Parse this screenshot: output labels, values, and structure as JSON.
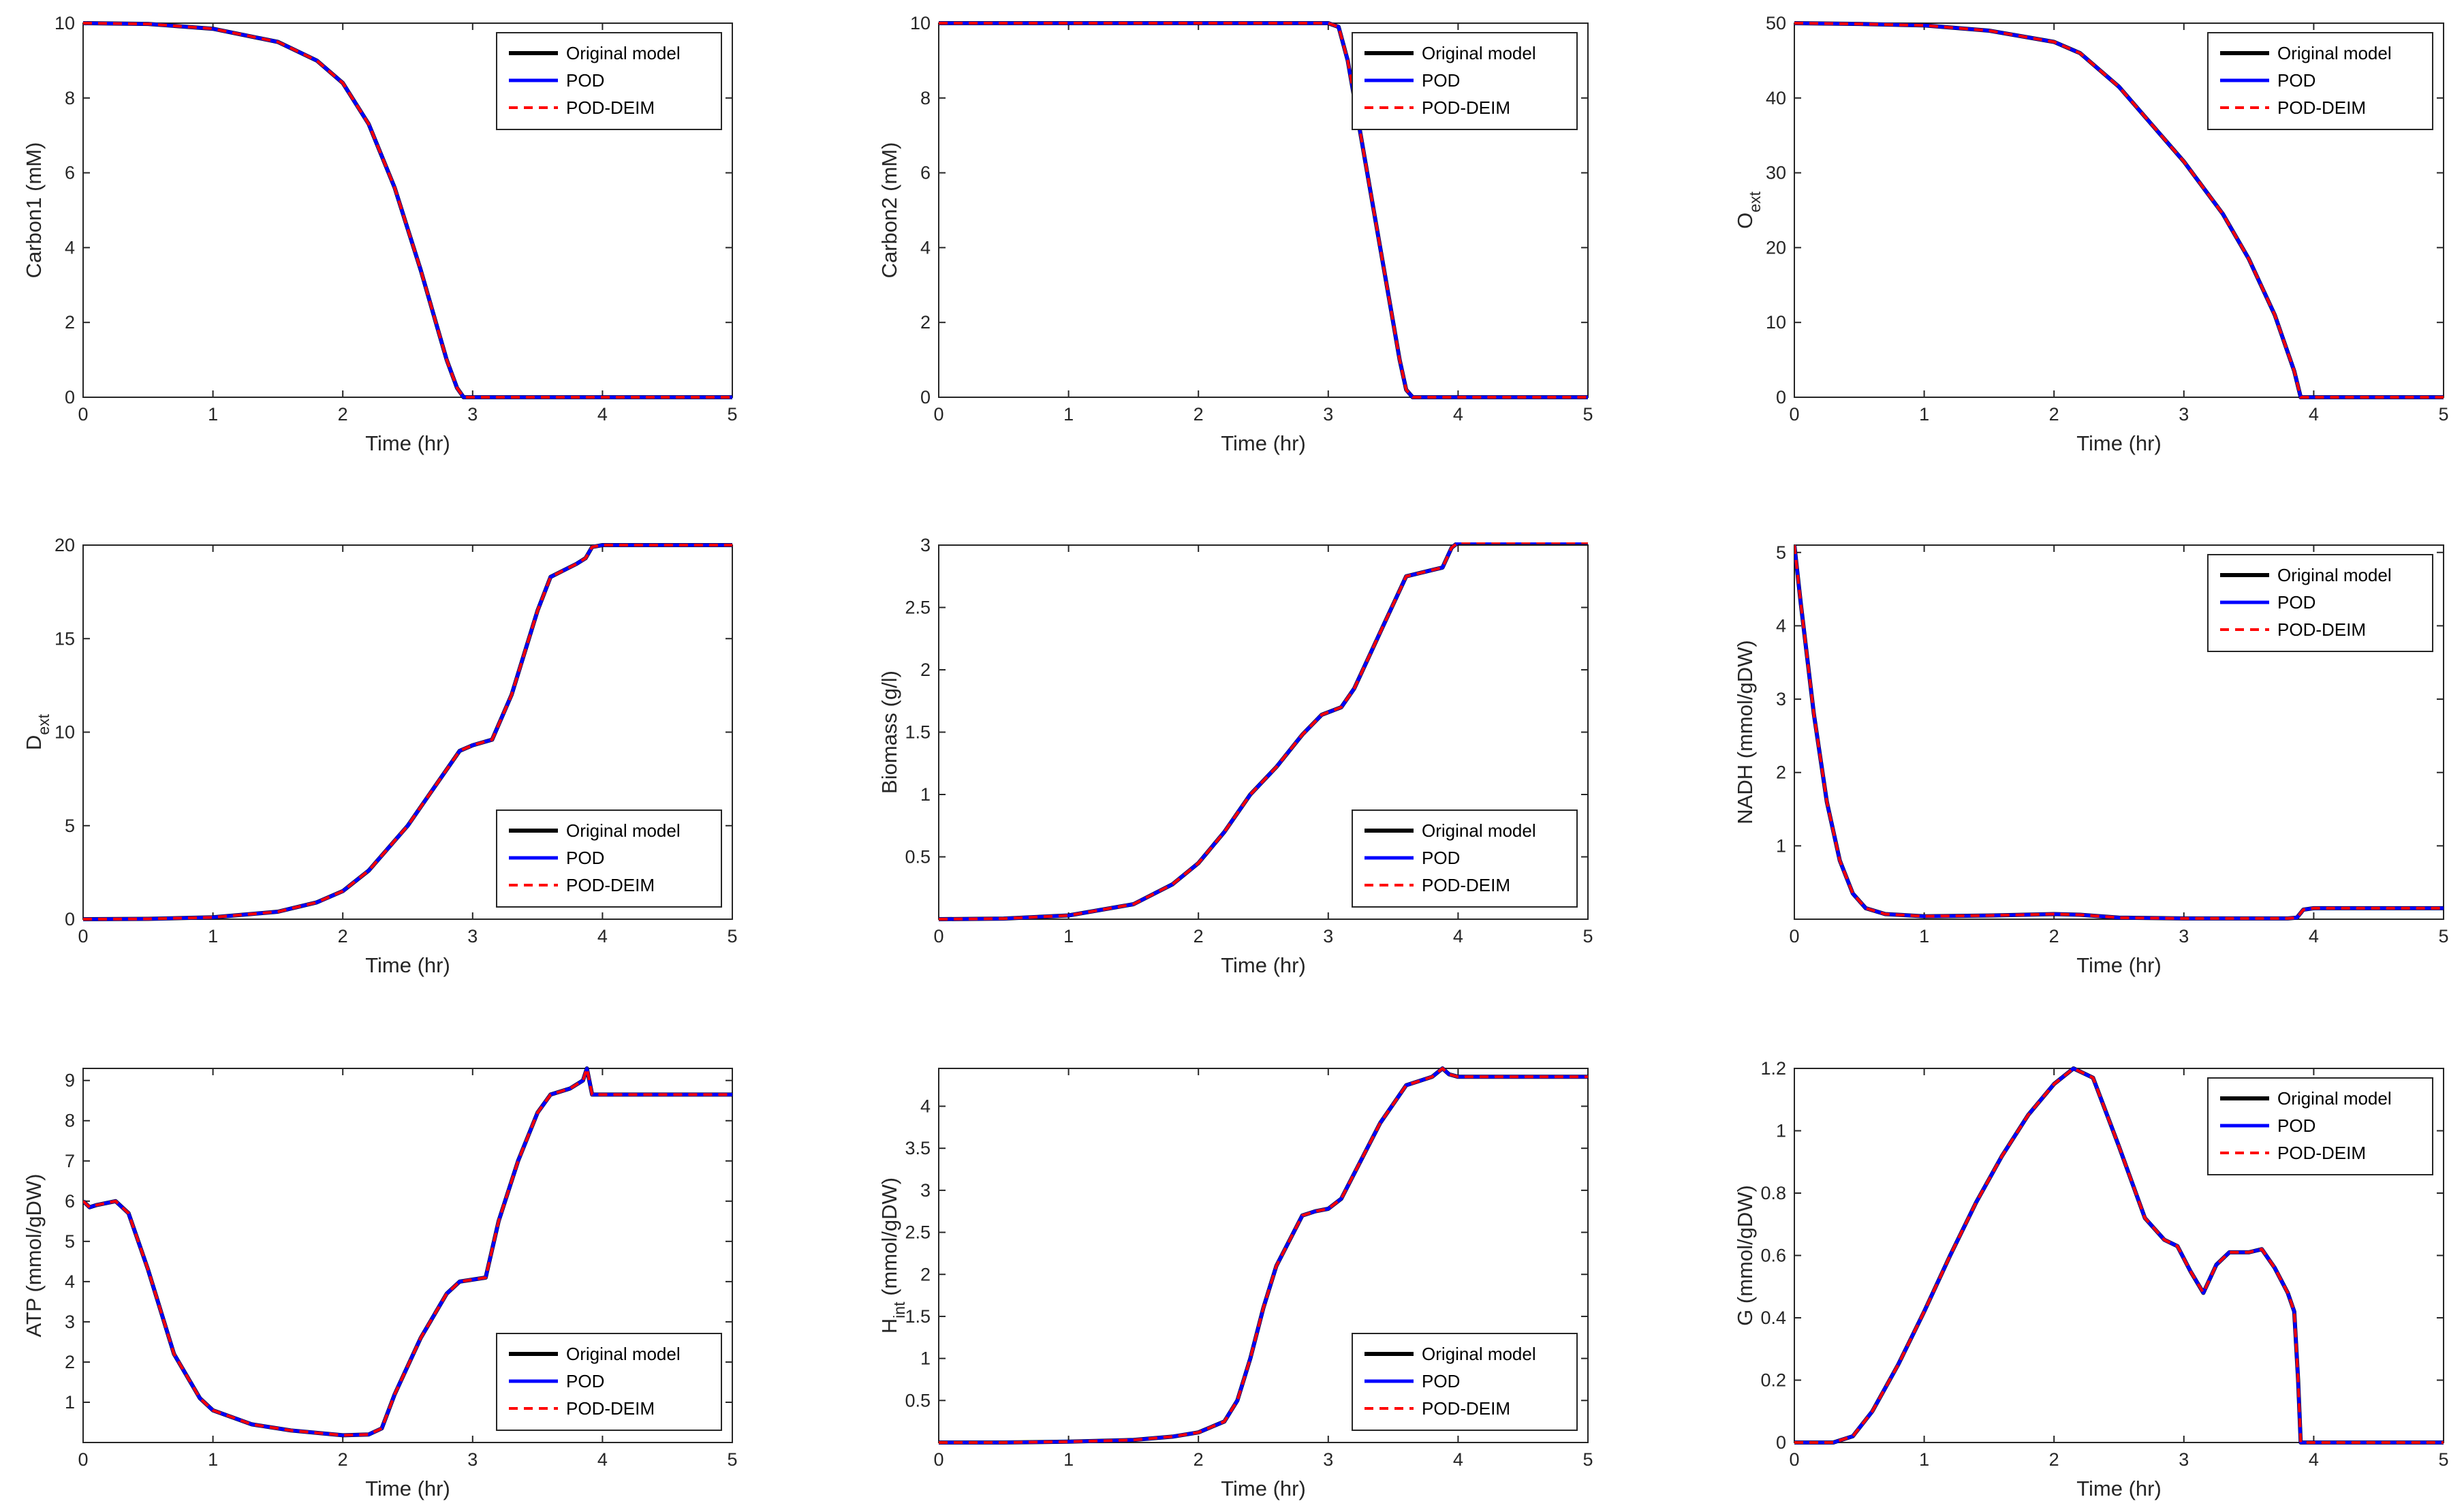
{
  "figure": {
    "legend_entries": [
      "Original model",
      "POD",
      "POD-DEIM"
    ],
    "series_colors": {
      "Original model": "#000000",
      "POD": "#0000ff",
      "POD-DEIM": "#ff0000"
    }
  },
  "chart_data": [
    {
      "type": "line",
      "xlabel": "Time (hr)",
      "ylabel": "Carbon1 (mM)",
      "ylabel_sub": "",
      "xlim": [
        0,
        5
      ],
      "ylim": [
        0,
        10
      ],
      "xticks": [
        0,
        1,
        2,
        3,
        4,
        5
      ],
      "yticks": [
        0,
        2,
        4,
        6,
        8,
        10
      ],
      "legend": "top-right",
      "x": [
        0,
        0.5,
        1.0,
        1.5,
        1.8,
        2.0,
        2.2,
        2.4,
        2.6,
        2.7,
        2.8,
        2.88,
        2.93,
        3.0,
        3.5,
        4.0,
        5.0
      ],
      "y": [
        10,
        9.98,
        9.85,
        9.5,
        9.0,
        8.4,
        7.3,
        5.6,
        3.4,
        2.2,
        1.0,
        0.25,
        0.0,
        0.0,
        0.0,
        0.0,
        0.0
      ],
      "series": [
        "Original model",
        "POD",
        "POD-DEIM"
      ]
    },
    {
      "type": "line",
      "xlabel": "Time (hr)",
      "ylabel": "Carbon2 (mM)",
      "ylabel_sub": "",
      "xlim": [
        0,
        5
      ],
      "ylim": [
        0,
        10
      ],
      "xticks": [
        0,
        1,
        2,
        3,
        4,
        5
      ],
      "yticks": [
        0,
        2,
        4,
        6,
        8,
        10
      ],
      "legend": "top-right",
      "x": [
        0,
        1,
        2,
        3.0,
        3.08,
        3.15,
        3.25,
        3.35,
        3.45,
        3.55,
        3.6,
        3.65,
        4,
        5
      ],
      "y": [
        10,
        10,
        10,
        10,
        9.9,
        9.0,
        7.0,
        5.0,
        3.0,
        1.0,
        0.2,
        0.0,
        0.0,
        0.0
      ],
      "series": [
        "Original model",
        "POD",
        "POD-DEIM"
      ]
    },
    {
      "type": "line",
      "xlabel": "Time (hr)",
      "ylabel": "O",
      "ylabel_sub": "ext",
      "xlim": [
        0,
        5
      ],
      "ylim": [
        0,
        50
      ],
      "xticks": [
        0,
        1,
        2,
        3,
        4,
        5
      ],
      "yticks": [
        0,
        10,
        20,
        30,
        40,
        50
      ],
      "legend": "top-right",
      "x": [
        0,
        0.5,
        1.0,
        1.5,
        2.0,
        2.2,
        2.5,
        3.0,
        3.3,
        3.5,
        3.7,
        3.85,
        3.9,
        4.0,
        5.0
      ],
      "y": [
        50,
        49.9,
        49.7,
        49.0,
        47.5,
        46.0,
        41.5,
        31.5,
        24.5,
        18.5,
        11.0,
        3.5,
        0.0,
        0.0,
        0.0
      ],
      "series": [
        "Original model",
        "POD",
        "POD-DEIM"
      ]
    },
    {
      "type": "line",
      "xlabel": "Time (hr)",
      "ylabel": "D",
      "ylabel_sub": "ext",
      "xlim": [
        0,
        5
      ],
      "ylim": [
        0,
        20
      ],
      "xticks": [
        0,
        1,
        2,
        3,
        4,
        5
      ],
      "yticks": [
        0,
        5,
        10,
        15,
        20
      ],
      "legend": "bottom-right",
      "x": [
        0,
        0.5,
        1.0,
        1.5,
        1.8,
        2.0,
        2.2,
        2.5,
        2.7,
        2.9,
        3.0,
        3.15,
        3.3,
        3.5,
        3.6,
        3.8,
        3.87,
        3.92,
        4.0,
        5.0
      ],
      "y": [
        0,
        0.02,
        0.1,
        0.4,
        0.9,
        1.5,
        2.6,
        5.0,
        7.0,
        9.0,
        9.3,
        9.6,
        12.0,
        16.5,
        18.3,
        19.0,
        19.3,
        19.9,
        20.0,
        20.0
      ],
      "series": [
        "Original model",
        "POD",
        "POD-DEIM"
      ]
    },
    {
      "type": "line",
      "xlabel": "Time (hr)",
      "ylabel": "Biomass (g/l)",
      "ylabel_sub": "",
      "xlim": [
        0,
        5
      ],
      "ylim": [
        0,
        3
      ],
      "xticks": [
        0,
        1,
        2,
        3,
        4,
        5
      ],
      "yticks": [
        0.5,
        1,
        1.5,
        2,
        2.5,
        3
      ],
      "legend": "bottom-right",
      "x": [
        0,
        0.5,
        1.0,
        1.5,
        1.8,
        2.0,
        2.2,
        2.4,
        2.6,
        2.8,
        2.95,
        3.1,
        3.2,
        3.4,
        3.6,
        3.8,
        3.88,
        3.95,
        4.0,
        5.0
      ],
      "y": [
        0,
        0.005,
        0.03,
        0.12,
        0.28,
        0.45,
        0.7,
        1.0,
        1.22,
        1.48,
        1.64,
        1.7,
        1.85,
        2.3,
        2.75,
        2.8,
        2.82,
        2.98,
        3.02,
        3.02
      ],
      "series": [
        "Original model",
        "POD",
        "POD-DEIM"
      ]
    },
    {
      "type": "line",
      "xlabel": "Time (hr)",
      "ylabel": "NADH (mmol/gDW)",
      "ylabel_sub": "",
      "xlim": [
        0,
        5
      ],
      "ylim": [
        0,
        5.1
      ],
      "xticks": [
        0,
        1,
        2,
        3,
        4,
        5
      ],
      "yticks": [
        1,
        2,
        3,
        4,
        5
      ],
      "legend": "top-right",
      "x": [
        0,
        0.05,
        0.15,
        0.25,
        0.35,
        0.45,
        0.55,
        0.7,
        1.0,
        1.5,
        2.0,
        2.2,
        2.5,
        3.0,
        3.8,
        3.87,
        3.92,
        4.0,
        5.0
      ],
      "y": [
        5.1,
        4.3,
        2.8,
        1.6,
        0.8,
        0.35,
        0.15,
        0.07,
        0.04,
        0.05,
        0.07,
        0.06,
        0.02,
        0.01,
        0.01,
        0.02,
        0.13,
        0.15,
        0.15
      ],
      "series": [
        "Original model",
        "POD",
        "POD-DEIM"
      ]
    },
    {
      "type": "line",
      "xlabel": "Time (hr)",
      "ylabel": "ATP (mmol/gDW)",
      "ylabel_sub": "",
      "xlim": [
        0,
        5
      ],
      "ylim": [
        0,
        9.3
      ],
      "xticks": [
        0,
        1,
        2,
        3,
        4,
        5
      ],
      "yticks": [
        1,
        2,
        3,
        4,
        5,
        6,
        7,
        8,
        9
      ],
      "legend": "bottom-right",
      "x": [
        0,
        0.05,
        0.1,
        0.25,
        0.35,
        0.5,
        0.7,
        0.9,
        1.0,
        1.3,
        1.6,
        2.0,
        2.2,
        2.3,
        2.4,
        2.6,
        2.8,
        2.9,
        3.1,
        3.2,
        3.35,
        3.5,
        3.6,
        3.75,
        3.85,
        3.88,
        3.92,
        4.0,
        5.0
      ],
      "y": [
        6.0,
        5.85,
        5.9,
        6.0,
        5.7,
        4.3,
        2.2,
        1.1,
        0.8,
        0.45,
        0.3,
        0.18,
        0.2,
        0.35,
        1.2,
        2.6,
        3.7,
        4.0,
        4.1,
        5.5,
        7.0,
        8.2,
        8.65,
        8.8,
        9.0,
        9.3,
        8.65,
        8.65,
        8.65
      ],
      "series": [
        "Original model",
        "POD",
        "POD-DEIM"
      ]
    },
    {
      "type": "line",
      "xlabel": "Time (hr)",
      "ylabel": "H",
      "ylabel_sub": "int",
      "ylabel_suffix": " (mmol/gDW)",
      "xlim": [
        0,
        5
      ],
      "ylim": [
        0,
        4.45
      ],
      "xticks": [
        0,
        1,
        2,
        3,
        4,
        5
      ],
      "yticks": [
        0.5,
        1,
        1.5,
        2,
        2.5,
        3,
        3.5,
        4
      ],
      "legend": "bottom-right",
      "x": [
        0,
        0.5,
        1.0,
        1.5,
        1.8,
        2.0,
        2.2,
        2.3,
        2.4,
        2.5,
        2.6,
        2.8,
        2.9,
        3.0,
        3.1,
        3.2,
        3.4,
        3.6,
        3.8,
        3.88,
        3.93,
        4.0,
        5.0
      ],
      "y": [
        0.0,
        0.0,
        0.01,
        0.03,
        0.07,
        0.12,
        0.25,
        0.5,
        1.0,
        1.6,
        2.1,
        2.7,
        2.75,
        2.78,
        2.9,
        3.2,
        3.8,
        4.25,
        4.35,
        4.45,
        4.38,
        4.35,
        4.35
      ],
      "series": [
        "Original model",
        "POD",
        "POD-DEIM"
      ]
    },
    {
      "type": "line",
      "xlabel": "Time (hr)",
      "ylabel": "G (mmol/gDW)",
      "ylabel_sub": "",
      "xlim": [
        0,
        5
      ],
      "ylim": [
        0,
        1.2
      ],
      "xticks": [
        0,
        1,
        2,
        3,
        4,
        5
      ],
      "yticks": [
        0,
        0.2,
        0.4,
        0.6,
        0.8,
        1,
        1.2
      ],
      "legend": "top-right",
      "x": [
        0,
        0.3,
        0.45,
        0.6,
        0.8,
        1.0,
        1.2,
        1.4,
        1.6,
        1.8,
        2.0,
        2.15,
        2.3,
        2.5,
        2.7,
        2.85,
        2.95,
        3.05,
        3.15,
        3.25,
        3.35,
        3.5,
        3.6,
        3.7,
        3.8,
        3.85,
        3.88,
        3.9,
        4.0,
        5.0
      ],
      "y": [
        0,
        0.0,
        0.02,
        0.1,
        0.25,
        0.42,
        0.6,
        0.77,
        0.92,
        1.05,
        1.15,
        1.2,
        1.17,
        0.95,
        0.72,
        0.65,
        0.63,
        0.55,
        0.48,
        0.57,
        0.61,
        0.61,
        0.62,
        0.56,
        0.48,
        0.42,
        0.2,
        0.0,
        0.0,
        0.0
      ],
      "series": [
        "Original model",
        "POD",
        "POD-DEIM"
      ]
    }
  ]
}
